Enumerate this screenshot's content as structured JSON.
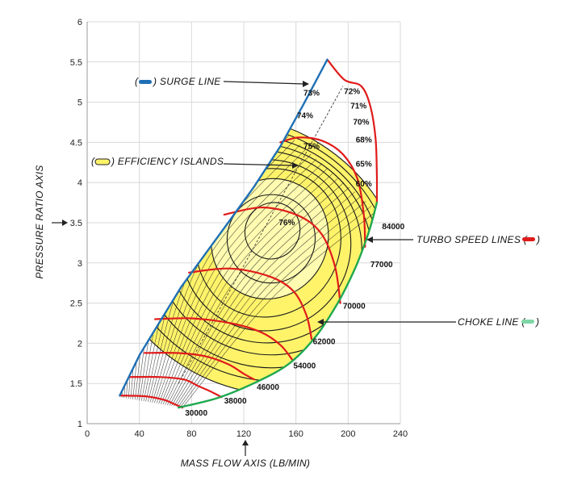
{
  "chart_data": {
    "type": "line",
    "title": "",
    "xlabel": "MASS FLOW AXIS (LB/MIN)",
    "ylabel": "PRESSURE RATIO AXIS",
    "xlim": [
      0,
      240
    ],
    "ylim": [
      1,
      6
    ],
    "x_ticks": [
      "0",
      "40",
      "80",
      "120",
      "160",
      "200",
      "240"
    ],
    "y_ticks": [
      "1",
      "1.5",
      "2",
      "2.5",
      "3",
      "3.5",
      "4",
      "4.5",
      "5",
      "5.5",
      "6"
    ],
    "grid": true,
    "colors": {
      "surge": "#1f6fb5",
      "choke": "#1fa84f",
      "speed": "#e01b1b",
      "island_fill": "#fff36a",
      "island_fill_inner": "#fffbb0",
      "grid": "#d9d9d9"
    },
    "surge_line": {
      "x": [
        25,
        40,
        55,
        72,
        90,
        108,
        128,
        148,
        165,
        184
      ],
      "y": [
        1.35,
        1.85,
        2.25,
        2.7,
        3.1,
        3.5,
        3.95,
        4.45,
        4.95,
        5.53
      ]
    },
    "choke_line": {
      "x": [
        70,
        100,
        130,
        155,
        175,
        192,
        205,
        213,
        218,
        222
      ],
      "y": [
        1.2,
        1.32,
        1.52,
        1.75,
        2.08,
        2.5,
        2.92,
        3.25,
        3.5,
        3.75
      ]
    },
    "speed_lines": [
      {
        "label": "30000",
        "x": [
          25,
          45,
          58,
          66,
          73
        ],
        "y": [
          1.35,
          1.34,
          1.3,
          1.25,
          1.2
        ]
      },
      {
        "label": "38000",
        "x": [
          33,
          55,
          74,
          85,
          96,
          103
        ],
        "y": [
          1.58,
          1.58,
          1.55,
          1.47,
          1.39,
          1.33
        ]
      },
      {
        "label": "46000",
        "x": [
          44,
          68,
          90,
          108,
          120,
          128
        ],
        "y": [
          1.88,
          1.88,
          1.84,
          1.74,
          1.62,
          1.55
        ]
      },
      {
        "label": "54000",
        "x": [
          52,
          80,
          110,
          133,
          148,
          157
        ],
        "y": [
          2.3,
          2.31,
          2.25,
          2.14,
          1.98,
          1.8
        ]
      },
      {
        "label": "62000",
        "x": [
          78,
          110,
          140,
          158,
          168,
          172
        ],
        "y": [
          2.88,
          2.93,
          2.83,
          2.65,
          2.35,
          2.05
        ]
      },
      {
        "label": "70000",
        "x": [
          105,
          135,
          163,
          180,
          190,
          194
        ],
        "y": [
          3.6,
          3.69,
          3.58,
          3.35,
          2.95,
          2.5
        ]
      },
      {
        "label": "77000",
        "x": [
          148,
          162,
          180,
          196,
          207,
          212,
          213
        ],
        "y": [
          4.5,
          4.56,
          4.52,
          4.35,
          4.05,
          3.6,
          3.2
        ]
      },
      {
        "label": "84000",
        "x": [
          184,
          197,
          210,
          217,
          221,
          222,
          222
        ],
        "y": [
          5.53,
          5.28,
          5.2,
          4.95,
          4.55,
          4.1,
          3.75
        ]
      }
    ],
    "efficiency_islands": [
      {
        "label": "60%",
        "cx": 126,
        "cy": 3.1,
        "rx": 100,
        "ry": 0.47,
        "angle": 57
      },
      {
        "label": "65%",
        "cx": 129,
        "cy": 3.12,
        "rx": 93,
        "ry": 0.42,
        "angle": 57
      },
      {
        "label": "68%",
        "cx": 132,
        "cy": 3.14,
        "rx": 86,
        "ry": 0.37,
        "angle": 57
      },
      {
        "label": "70%",
        "cx": 135,
        "cy": 3.17,
        "rx": 79,
        "ry": 0.33,
        "angle": 57
      },
      {
        "label": "71%",
        "cx": 136,
        "cy": 3.2,
        "rx": 73,
        "ry": 0.29,
        "angle": 57
      },
      {
        "label": "72%",
        "cx": 137,
        "cy": 3.22,
        "rx": 66,
        "ry": 0.25,
        "angle": 57
      },
      {
        "label": "73%",
        "cx": 139,
        "cy": 3.25,
        "rx": 58,
        "ry": 0.21,
        "angle": 57
      },
      {
        "label": "74%",
        "cx": 140,
        "cy": 3.3,
        "rx": 47,
        "ry": 0.17,
        "angle": 57
      },
      {
        "label": "75%",
        "cx": 141,
        "cy": 3.3,
        "rx": 34,
        "ry": 0.13,
        "angle": 57
      },
      {
        "label": "76%",
        "cx": 142,
        "cy": 3.4,
        "rx": 22,
        "ry": 0.08,
        "angle": 57
      }
    ],
    "efficiency_label_points": [
      {
        "label": "73%",
        "x": 172,
        "y": 5.08
      },
      {
        "label": "72%",
        "x": 203,
        "y": 5.1
      },
      {
        "label": "71%",
        "x": 208,
        "y": 4.92
      },
      {
        "label": "70%",
        "x": 210,
        "y": 4.72
      },
      {
        "label": "74%",
        "x": 167,
        "y": 4.8
      },
      {
        "label": "68%",
        "x": 212,
        "y": 4.5
      },
      {
        "label": "75%",
        "x": 172,
        "y": 4.42
      },
      {
        "label": "65%",
        "x": 212,
        "y": 4.2
      },
      {
        "label": "60%",
        "x": 212,
        "y": 3.95
      },
      {
        "label": "76%",
        "x": 153,
        "y": 3.47
      }
    ],
    "speed_label_points": [
      {
        "label": "84000",
        "x": 226,
        "y": 3.42
      },
      {
        "label": "77000",
        "x": 217,
        "y": 2.95
      },
      {
        "label": "70000",
        "x": 196,
        "y": 2.43
      },
      {
        "label": "62000",
        "x": 173,
        "y": 1.99
      },
      {
        "label": "54000",
        "x": 158,
        "y": 1.69
      },
      {
        "label": "46000",
        "x": 130,
        "y": 1.42
      },
      {
        "label": "38000",
        "x": 105,
        "y": 1.25
      },
      {
        "label": "30000",
        "x": 75,
        "y": 1.1
      }
    ],
    "annotations": {
      "surge": {
        "open": "(",
        "close": ") SURGE LINE"
      },
      "efficiency": {
        "open": "(",
        "close": ") EFFICIENCY ISLANDS"
      },
      "speed": {
        "text": "TURBO SPEED LINES (",
        "close": ")"
      },
      "choke": {
        "text": "CHOKE LINE (",
        "close": ")"
      }
    }
  }
}
